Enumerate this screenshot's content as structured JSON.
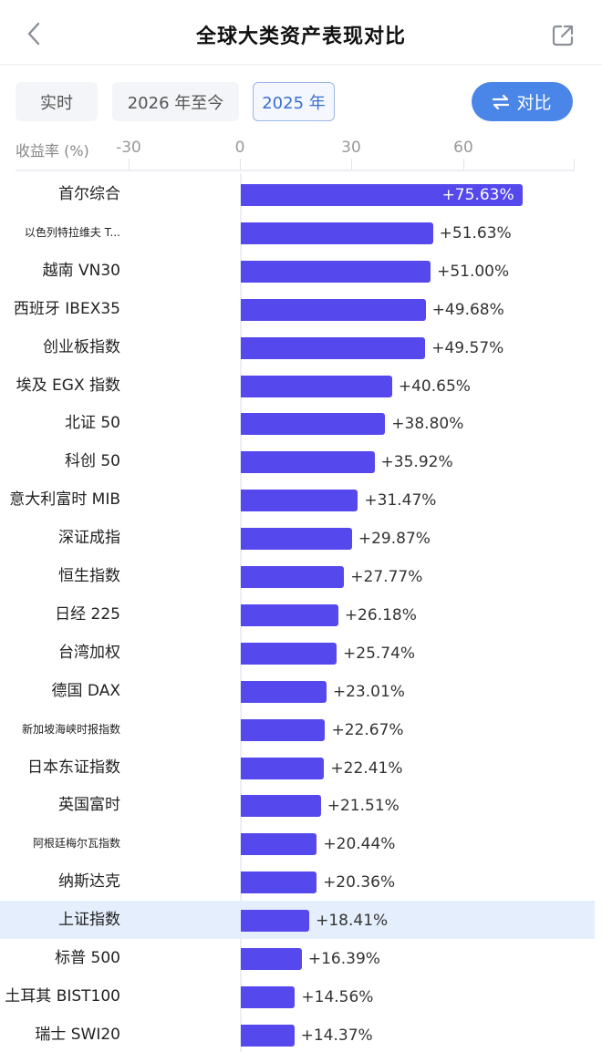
{
  "nav": {
    "title": "全球大类资产表现对比",
    "back_icon": "chevron-left-icon",
    "share_icon": "external-share-icon"
  },
  "filters": {
    "items": [
      {
        "label": "实时",
        "active": false
      },
      {
        "label": "2026 年至今",
        "active": false
      },
      {
        "label": "2025 年",
        "active": true
      }
    ],
    "compare_label": "对比",
    "compare_icon": "swap-arrows-icon"
  },
  "axis": {
    "ylabel": "收益率 (%)",
    "ticks": [
      "-30",
      "0",
      "30",
      "60"
    ]
  },
  "colors": {
    "bar": "#5548ec",
    "accent": "#4a86e8",
    "highlight_row": "#e5eefc"
  },
  "chart_data": {
    "type": "bar",
    "orientation": "horizontal",
    "title": "全球大类资产表现对比",
    "xlabel": "收益率 (%)",
    "ylabel": "",
    "xlim": [
      -30,
      90
    ],
    "xticks": [
      -30,
      0,
      30,
      60
    ],
    "grid": false,
    "legend": null,
    "period": "2025 年",
    "highlighted": "上证指数",
    "categories": [
      "首尔综合",
      "以色列特拉维夫 T...",
      "越南 VN30",
      "西班牙 IBEX35",
      "创业板指数",
      "埃及 EGX 指数",
      "北证 50",
      "科创 50",
      "意大利富时 MIB",
      "深证成指",
      "恒生指数",
      "日经 225",
      "台湾加权",
      "德国 DAX",
      "新加坡海峡时报指数",
      "日本东证指数",
      "英国富时",
      "阿根廷梅尔瓦指数",
      "纳斯达克",
      "上证指数",
      "标普 500",
      "土耳其 BIST100",
      "瑞士 SWI20"
    ],
    "values": [
      75.63,
      51.63,
      51.0,
      49.68,
      49.57,
      40.65,
      38.8,
      35.92,
      31.47,
      29.87,
      27.77,
      26.18,
      25.74,
      23.01,
      22.67,
      22.41,
      21.51,
      20.44,
      20.36,
      18.41,
      16.39,
      14.56,
      14.37
    ],
    "labels": [
      "+75.63%",
      "+51.63%",
      "+51.00%",
      "+49.68%",
      "+49.57%",
      "+40.65%",
      "+38.80%",
      "+35.92%",
      "+31.47%",
      "+29.87%",
      "+27.77%",
      "+26.18%",
      "+25.74%",
      "+23.01%",
      "+22.67%",
      "+22.41%",
      "+21.51%",
      "+20.44%",
      "+20.36%",
      "+18.41%",
      "+16.39%",
      "+14.56%",
      "+14.37%"
    ]
  }
}
